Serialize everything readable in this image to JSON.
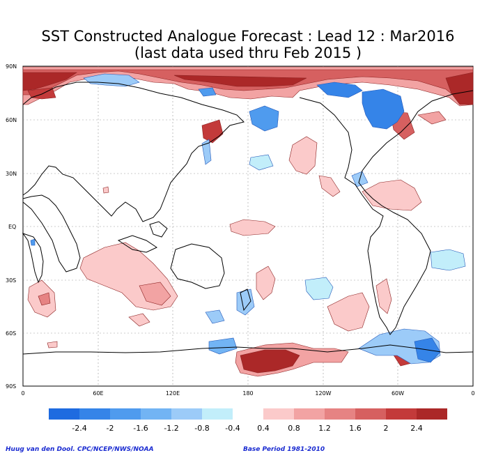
{
  "title": {
    "line1": "SST Constructed Analogue Forecast : Lead 12 : Mar2016",
    "line2": "(last data used thru Feb 2015 )"
  },
  "map": {
    "lat_labels": [
      "90N",
      "60N",
      "30N",
      "EQ",
      "30S",
      "60S",
      "90S"
    ],
    "lon_labels": [
      "0",
      "60E",
      "120E",
      "180",
      "120W",
      "60W",
      "0"
    ]
  },
  "legend": {
    "tick_labels": [
      "-2.4",
      "-2",
      "-1.6",
      "-1.2",
      "-0.8",
      "-0.4",
      "0.4",
      "0.8",
      "1.2",
      "1.6",
      "2",
      "2.4"
    ],
    "neg_colors": [
      "#1e6be0",
      "#3584e8",
      "#4f9bee",
      "#72b4f4",
      "#9ccbf8",
      "#c2eefa"
    ],
    "pos_colors": [
      "#fbcaca",
      "#f2a3a3",
      "#e68383",
      "#d66060",
      "#c33a3a",
      "#ab2828"
    ]
  },
  "credits": {
    "left": "Huug van den Dool. CPC/NCEP/NWS/NOAA",
    "right": "Base Period 1981-2010"
  }
}
